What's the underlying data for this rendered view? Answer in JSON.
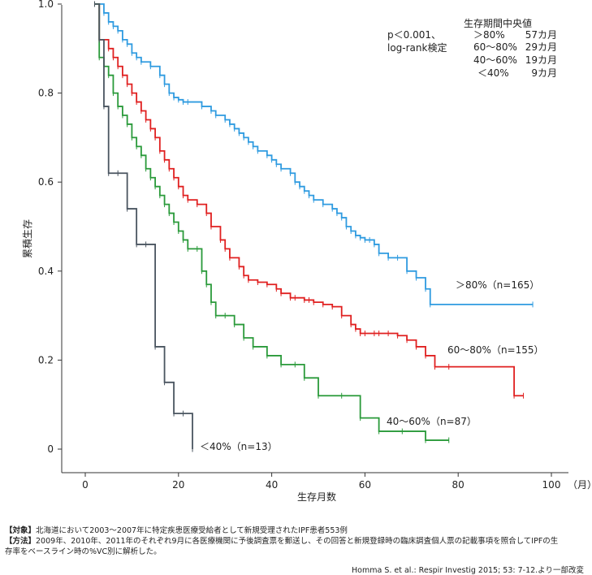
{
  "chart_data": {
    "type": "line",
    "xlabel": "生存月数",
    "ylabel": "累積生存",
    "x_unit": "（月）",
    "xlim": [
      -5,
      100
    ],
    "ylim": [
      0,
      1.0
    ],
    "x_ticks": [
      0,
      20,
      40,
      60,
      80,
      100
    ],
    "y_ticks": [
      "0",
      "0.2",
      "0.4",
      "0.6",
      "0.8",
      "1.0"
    ],
    "y_tick_values": [
      0,
      0.2,
      0.4,
      0.6,
      0.8,
      1.0
    ],
    "grid": false,
    "p_value": "p＜0.001、",
    "test_name": "log-rank検定",
    "median_title": "生存期間中央値",
    "medians": [
      {
        "group": "＞80%",
        "value": "57カ月"
      },
      {
        "group": "60〜80%",
        "value": "29カ月"
      },
      {
        "group": "40〜60%",
        "value": "19カ月"
      },
      {
        "group": "＜40%",
        "value": "9カ月"
      }
    ],
    "series": [
      {
        "name": "＞80%（n=165）",
        "color": "#2f9be0",
        "x": [
          2,
          4,
          5,
          6,
          7,
          8,
          9,
          10,
          11,
          12,
          14,
          16,
          17,
          18,
          19,
          20,
          21,
          22,
          25,
          27,
          28,
          30,
          31,
          32,
          33,
          34,
          35,
          36,
          37,
          39,
          40,
          41,
          42,
          44,
          45,
          46,
          47,
          48,
          49,
          51,
          53,
          54,
          55,
          56,
          57,
          58,
          59,
          60,
          61,
          62,
          63,
          65,
          67,
          69,
          71,
          73,
          74,
          96
        ],
        "y": [
          1.0,
          0.98,
          0.96,
          0.95,
          0.94,
          0.92,
          0.91,
          0.89,
          0.88,
          0.87,
          0.86,
          0.84,
          0.82,
          0.8,
          0.79,
          0.785,
          0.78,
          0.78,
          0.77,
          0.76,
          0.75,
          0.74,
          0.73,
          0.72,
          0.71,
          0.7,
          0.69,
          0.68,
          0.67,
          0.66,
          0.65,
          0.64,
          0.63,
          0.62,
          0.6,
          0.59,
          0.58,
          0.57,
          0.56,
          0.55,
          0.54,
          0.53,
          0.52,
          0.5,
          0.49,
          0.48,
          0.475,
          0.47,
          0.47,
          0.46,
          0.44,
          0.43,
          0.43,
          0.4,
          0.385,
          0.36,
          0.325,
          0.325
        ]
      },
      {
        "name": "60〜80%（n=155）",
        "color": "#e02020",
        "x": [
          2,
          3,
          5,
          6,
          7,
          8,
          9,
          10,
          11,
          12,
          13,
          14,
          15,
          16,
          17,
          18,
          19,
          20,
          21,
          22,
          24,
          26,
          27,
          29,
          30,
          31,
          33,
          34,
          35,
          37,
          39,
          41,
          42,
          44,
          45,
          47,
          48,
          49,
          51,
          53,
          55,
          57,
          58,
          59,
          60,
          62,
          63,
          65,
          67,
          69,
          71,
          73,
          75,
          78,
          92,
          94
        ],
        "y": [
          1.0,
          0.92,
          0.9,
          0.88,
          0.86,
          0.84,
          0.82,
          0.8,
          0.78,
          0.76,
          0.74,
          0.72,
          0.7,
          0.67,
          0.65,
          0.63,
          0.61,
          0.59,
          0.57,
          0.56,
          0.55,
          0.53,
          0.5,
          0.47,
          0.45,
          0.43,
          0.41,
          0.39,
          0.38,
          0.375,
          0.37,
          0.36,
          0.35,
          0.34,
          0.34,
          0.335,
          0.335,
          0.33,
          0.325,
          0.32,
          0.3,
          0.28,
          0.27,
          0.26,
          0.26,
          0.26,
          0.26,
          0.26,
          0.255,
          0.245,
          0.23,
          0.21,
          0.185,
          0.185,
          0.12,
          0.12
        ]
      },
      {
        "name": "40〜60%（n=87）",
        "color": "#2a9a3a",
        "x": [
          2,
          3,
          4,
          5,
          6,
          7,
          8,
          9,
          10,
          11,
          12,
          13,
          14,
          15,
          16,
          17,
          18,
          19,
          20,
          21,
          22,
          24,
          25,
          26,
          27,
          28,
          30,
          32,
          34,
          36,
          39,
          42,
          45,
          47,
          50,
          55,
          59,
          63,
          68,
          73,
          78
        ],
        "y": [
          1.0,
          0.88,
          0.86,
          0.84,
          0.8,
          0.77,
          0.75,
          0.73,
          0.7,
          0.68,
          0.66,
          0.63,
          0.61,
          0.59,
          0.57,
          0.55,
          0.53,
          0.51,
          0.49,
          0.47,
          0.45,
          0.45,
          0.4,
          0.37,
          0.33,
          0.3,
          0.3,
          0.28,
          0.25,
          0.23,
          0.21,
          0.19,
          0.19,
          0.16,
          0.12,
          0.12,
          0.07,
          0.04,
          0.04,
          0.02,
          0.02
        ]
      },
      {
        "name": "＜40%（n=13）",
        "color": "#4a5560",
        "x": [
          2,
          3,
          4,
          5,
          7,
          9,
          11,
          13,
          15,
          17,
          19,
          21,
          23
        ],
        "y": [
          1.0,
          0.92,
          0.77,
          0.62,
          0.62,
          0.54,
          0.46,
          0.46,
          0.23,
          0.15,
          0.08,
          0.08,
          0.0
        ]
      }
    ]
  },
  "footer": {
    "target_tag": "【対象】",
    "target_text": "北海道において2003〜2007年に特定疾患医療受給者として新規受理されたIPF患者553例",
    "method_tag": "【方法】",
    "method_text_1": "2009年、2010年、2011年のそれぞれ9月に各医療機関に予後調査票を郵送し、その回答と新規登録時の臨床調査個人票の記載事項を照合してIPFの生",
    "method_text_2": "存率をベースライン時の%VC別に解析した。",
    "citation": "Homma S. et al.: Respir Investig 2015; 53: 7-12.より一部改変"
  }
}
